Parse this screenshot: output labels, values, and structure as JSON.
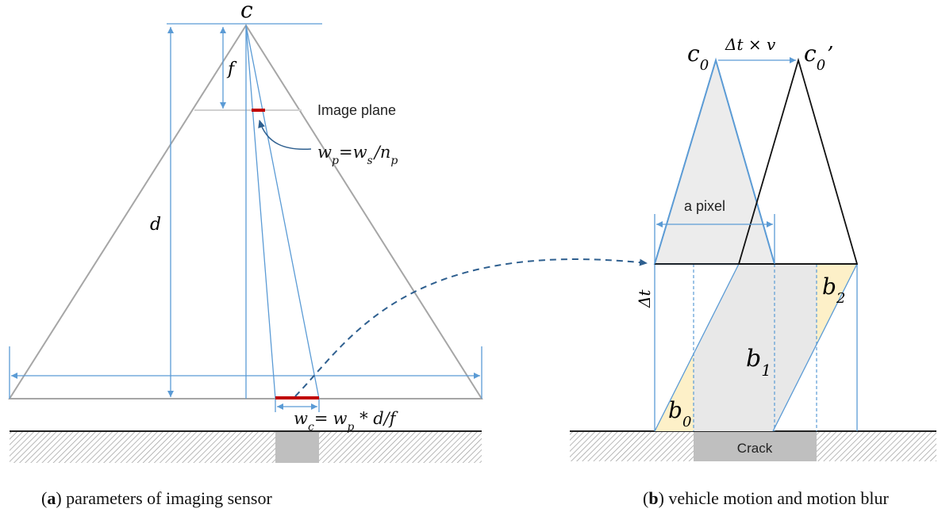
{
  "panel_a": {
    "apex_label": "c",
    "focal_label": "f",
    "distance_label": "d",
    "image_plane_label": "Image plane",
    "pixel_width_formula": {
      "w": "w",
      "p": "p",
      "eq": "=",
      "s": "s",
      "slash": "/",
      "n": "n"
    },
    "crack_width_formula": {
      "w": "w",
      "c": "c",
      "eq": "=",
      "p": "p",
      "rest": " * d/f"
    },
    "caption": {
      "open": "(",
      "letter": "a",
      "close": ") parameters of imaging sensor"
    }
  },
  "panel_b": {
    "c0_label": {
      "main": "c",
      "sub": "0"
    },
    "c0p_label": {
      "main": "c",
      "sub": "0",
      "prime": "’"
    },
    "displacement_label": "Δt × v",
    "pixel_label": "a pixel",
    "dt_label": "Δt",
    "b0_label": {
      "main": "b",
      "sub": "0"
    },
    "b1_label": {
      "main": "b",
      "sub": "1"
    },
    "b2_label": {
      "main": "b",
      "sub": "2"
    },
    "crack_label": "Crack",
    "caption": {
      "open": "(",
      "letter": "b",
      "close": ") vehicle motion and motion blur"
    }
  },
  "colors": {
    "blue": "#5b9bd5",
    "gray_line": "#a6a6a6",
    "red": "#c00000",
    "dark_blue": "#2e5f8f",
    "fill_gray": "#e8e8e8",
    "fill_yellow": "#fdf0c8",
    "crack_gray": "#bfbfbf"
  }
}
